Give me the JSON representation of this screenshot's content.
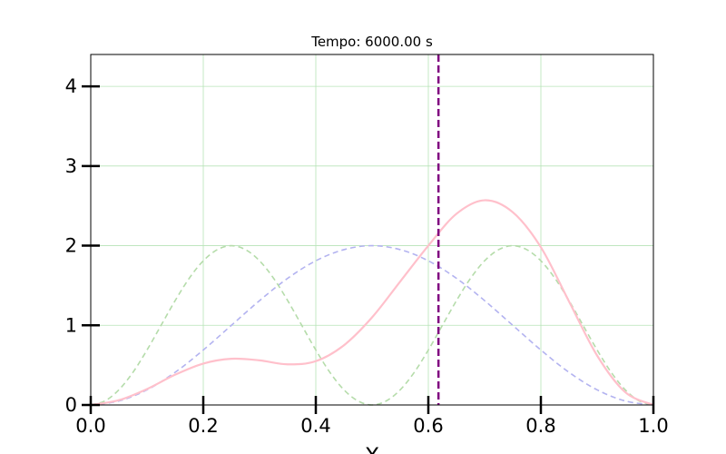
{
  "chart_data": {
    "type": "line",
    "title": "Tempo: 6000.00 s",
    "xlabel": "X",
    "ylabel": "",
    "xlim": [
      0.0,
      1.0
    ],
    "ylim": [
      0.0,
      4.4
    ],
    "xticks": [
      0.0,
      0.2,
      0.4,
      0.6,
      0.8,
      1.0
    ],
    "xtick_labels": [
      "0.0",
      "0.2",
      "0.4",
      "0.6",
      "0.8",
      "1.0"
    ],
    "yticks": [
      0,
      1,
      2,
      3,
      4
    ],
    "ytick_labels": [
      "0",
      "1",
      "2",
      "3",
      "4"
    ],
    "grid": true,
    "grid_color": "#b7e3b7",
    "legend": "none",
    "vline": {
      "x": 0.618,
      "color": "#800080",
      "style": "dashed"
    },
    "series": [
      {
        "color": "#b3b3f0",
        "style": "dashed",
        "x": [
          0.0,
          0.05,
          0.1,
          0.15,
          0.2,
          0.25,
          0.3,
          0.35,
          0.4,
          0.45,
          0.5,
          0.55,
          0.6,
          0.65,
          0.7,
          0.75,
          0.8,
          0.85,
          0.9,
          0.95,
          1.0
        ],
        "y": [
          0.0,
          0.05,
          0.19,
          0.41,
          0.69,
          1.0,
          1.31,
          1.59,
          1.81,
          1.95,
          2.0,
          1.95,
          1.81,
          1.59,
          1.31,
          1.0,
          0.69,
          0.41,
          0.19,
          0.05,
          0.0
        ]
      },
      {
        "color": "#b5dcaa",
        "style": "dashed",
        "x": [
          0.0,
          0.025,
          0.05,
          0.075,
          0.1,
          0.125,
          0.15,
          0.175,
          0.2,
          0.225,
          0.25,
          0.275,
          0.3,
          0.325,
          0.35,
          0.375,
          0.4,
          0.425,
          0.45,
          0.475,
          0.5,
          0.525,
          0.55,
          0.575,
          0.6,
          0.625,
          0.65,
          0.675,
          0.7,
          0.725,
          0.75,
          0.775,
          0.8,
          0.825,
          0.85,
          0.875,
          0.9,
          0.925,
          0.95,
          0.975,
          1.0
        ],
        "y": [
          0.0,
          0.05,
          0.19,
          0.41,
          0.69,
          1.0,
          1.31,
          1.59,
          1.81,
          1.95,
          2.0,
          1.95,
          1.81,
          1.59,
          1.31,
          1.0,
          0.69,
          0.41,
          0.19,
          0.05,
          0.0,
          0.05,
          0.19,
          0.41,
          0.69,
          1.0,
          1.31,
          1.59,
          1.81,
          1.95,
          2.0,
          1.95,
          1.81,
          1.59,
          1.31,
          1.0,
          0.69,
          0.41,
          0.19,
          0.05,
          0.0
        ]
      },
      {
        "color": "#ffc0cb",
        "style": "solid",
        "x": [
          0.0,
          0.05,
          0.1,
          0.15,
          0.2,
          0.25,
          0.3,
          0.35,
          0.4,
          0.45,
          0.5,
          0.55,
          0.6,
          0.65,
          0.7,
          0.75,
          0.8,
          0.85,
          0.9,
          0.95,
          1.0
        ],
        "y": [
          0.0,
          0.06,
          0.2,
          0.38,
          0.52,
          0.58,
          0.56,
          0.51,
          0.55,
          0.75,
          1.1,
          1.55,
          2.0,
          2.4,
          2.57,
          2.42,
          1.98,
          1.3,
          0.62,
          0.16,
          0.0
        ]
      }
    ]
  }
}
